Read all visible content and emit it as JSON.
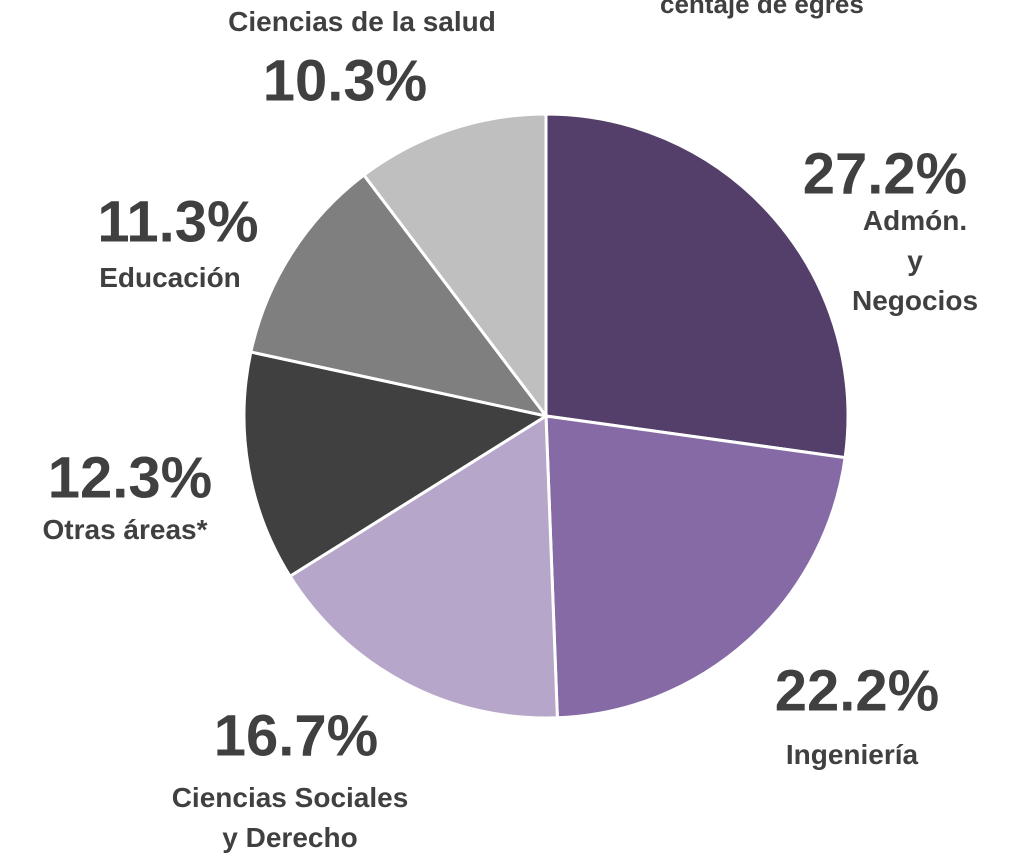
{
  "chart_data": {
    "type": "pie",
    "title": "centaje de egres",
    "categories": [
      "Admón. y\nNegocios",
      "Ingeniería",
      "Ciencias Sociales\ny Derecho",
      "Otras áreas*",
      "Educación",
      "Ciencias de la salud"
    ],
    "values": [
      27.2,
      22.2,
      16.7,
      12.3,
      11.3,
      10.3
    ],
    "value_labels": [
      "27.2%",
      "22.2%",
      "16.7%",
      "12.3%",
      "11.3%",
      "10.3%"
    ],
    "colors": [
      "#543f6b",
      "#856aa5",
      "#b6a6c9",
      "#404040",
      "#7f7f7f",
      "#bfbfbf"
    ]
  }
}
